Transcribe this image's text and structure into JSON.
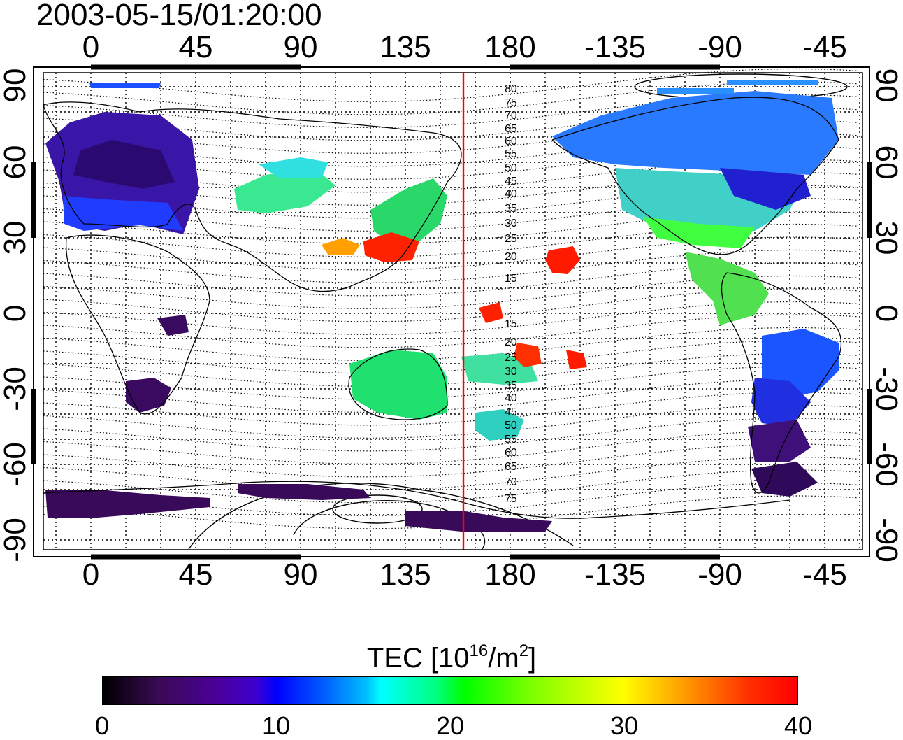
{
  "title": "2003-05-15/01:20:00",
  "top_ticks": [
    "0",
    "45",
    "90",
    "135",
    "180",
    "-135",
    "-90",
    "-45"
  ],
  "bottom_ticks": [
    "0",
    "45",
    "90",
    "135",
    "180",
    "-135",
    "-90",
    "-45"
  ],
  "left_ticks": [
    "90",
    "60",
    "30",
    "0",
    "-30",
    "-60",
    "-90"
  ],
  "right_ticks": [
    "90",
    "60",
    "30",
    "0",
    "-30",
    "-60",
    "-90"
  ],
  "contour_labels_north": [
    "80",
    "75",
    "70",
    "65",
    "60",
    "55",
    "50",
    "45",
    "40",
    "35",
    "30",
    "25",
    "20",
    "15"
  ],
  "contour_labels_south": [
    "15",
    "20",
    "25",
    "30",
    "35",
    "40",
    "45",
    "50",
    "55",
    "60",
    "65",
    "70",
    "75"
  ],
  "colorbar": {
    "title_prefix": "TEC  [10",
    "title_exp1": "16",
    "title_mid": "/m",
    "title_exp2": "2",
    "title_suffix": "]",
    "labels": [
      "0",
      "10",
      "20",
      "30",
      "40"
    ],
    "range": [
      0,
      40
    ]
  },
  "colors": {
    "meridian_line": "#ff0000",
    "coastline": "#000000"
  }
}
